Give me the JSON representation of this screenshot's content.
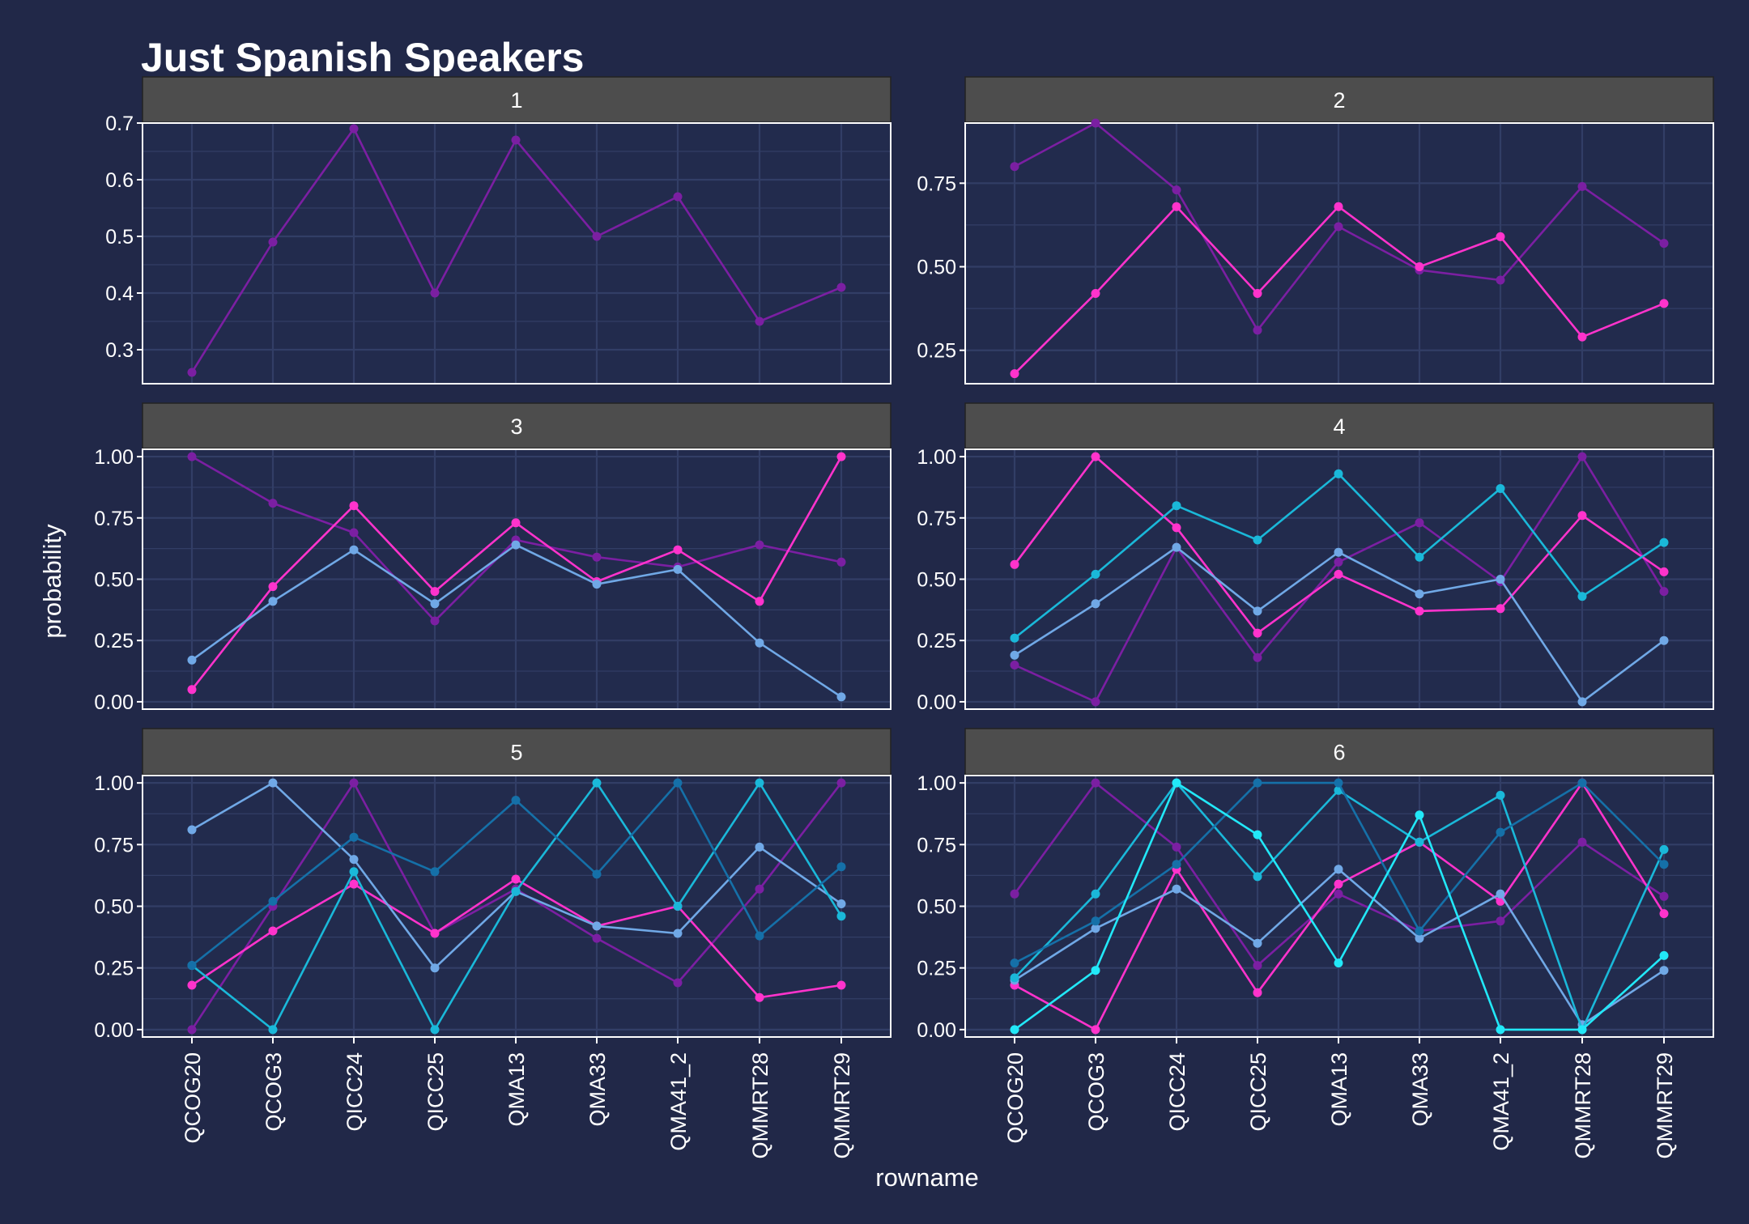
{
  "title": "Just Spanish Speakers",
  "xlabel": "rowname",
  "ylabel": "probability",
  "colors": {
    "background": "#212848",
    "panel_bg": "#222B4D",
    "strip_bg": "#4D4D4D",
    "grid": "#323E66",
    "text": "#FFFFFF",
    "series": [
      "#7B1FA2",
      "#FF33CC",
      "#70A8E6",
      "#1AB8D9",
      "#1570A8",
      "#22E8F8"
    ]
  },
  "chart_data": {
    "type": "line",
    "categories": [
      "QCOG20",
      "QCOG3",
      "QICC24",
      "QICC25",
      "QMA13",
      "QMA33",
      "QMA41_2",
      "QMMRT28",
      "QMMRT29"
    ],
    "xlabel": "rowname",
    "ylabel": "probability",
    "title": "Just Spanish Speakers",
    "grid": true,
    "legend": "none",
    "panels": [
      {
        "label": "1",
        "ylim": [
          0.24,
          0.7
        ],
        "yticks": [
          0.3,
          0.4,
          0.5,
          0.6,
          0.7
        ],
        "ytick_labels": [
          "0.3",
          "0.4",
          "0.5",
          "0.6",
          "0.7"
        ],
        "series": [
          {
            "values": [
              0.26,
              0.49,
              0.69,
              0.4,
              0.67,
              0.5,
              0.57,
              0.35,
              0.41
            ]
          }
        ]
      },
      {
        "label": "2",
        "ylim": [
          0.15,
          0.93
        ],
        "yticks": [
          0.25,
          0.5,
          0.75
        ],
        "ytick_labels": [
          "0.25",
          "0.50",
          "0.75"
        ],
        "series": [
          {
            "values": [
              0.8,
              0.93,
              0.73,
              0.31,
              0.62,
              0.49,
              0.46,
              0.74,
              0.57
            ]
          },
          {
            "values": [
              0.18,
              0.42,
              0.68,
              0.42,
              0.68,
              0.5,
              0.59,
              0.29,
              0.39
            ]
          }
        ]
      },
      {
        "label": "3",
        "ylim": [
          -0.03,
          1.03
        ],
        "yticks": [
          0,
          0.25,
          0.5,
          0.75,
          1
        ],
        "ytick_labels": [
          "0.00",
          "0.25",
          "0.50",
          "0.75",
          "1.00"
        ],
        "series": [
          {
            "values": [
              1.0,
              0.81,
              0.69,
              0.33,
              0.66,
              0.59,
              0.55,
              0.64,
              0.57
            ]
          },
          {
            "values": [
              0.05,
              0.47,
              0.8,
              0.45,
              0.73,
              0.49,
              0.62,
              0.41,
              1.0
            ]
          },
          {
            "values": [
              0.17,
              0.41,
              0.62,
              0.4,
              0.64,
              0.48,
              0.54,
              0.24,
              0.02
            ]
          }
        ]
      },
      {
        "label": "4",
        "ylim": [
          -0.03,
          1.03
        ],
        "yticks": [
          0,
          0.25,
          0.5,
          0.75,
          1
        ],
        "ytick_labels": [
          "0.00",
          "0.25",
          "0.50",
          "0.75",
          "1.00"
        ],
        "series": [
          {
            "values": [
              0.15,
              0.0,
              0.63,
              0.18,
              0.57,
              0.73,
              0.49,
              1.0,
              0.45
            ]
          },
          {
            "values": [
              0.56,
              1.0,
              0.71,
              0.28,
              0.52,
              0.37,
              0.38,
              0.76,
              0.53
            ]
          },
          {
            "values": [
              0.19,
              0.4,
              0.63,
              0.37,
              0.61,
              0.44,
              0.5,
              0.0,
              0.25
            ]
          },
          {
            "values": [
              0.26,
              0.52,
              0.8,
              0.66,
              0.93,
              0.59,
              0.87,
              0.43,
              0.65
            ]
          }
        ]
      },
      {
        "label": "5",
        "ylim": [
          -0.03,
          1.03
        ],
        "yticks": [
          0,
          0.25,
          0.5,
          0.75,
          1
        ],
        "ytick_labels": [
          "0.00",
          "0.25",
          "0.50",
          "0.75",
          "1.00"
        ],
        "series": [
          {
            "values": [
              0.0,
              0.5,
              1.0,
              0.39,
              0.57,
              0.37,
              0.19,
              0.57,
              1.0
            ]
          },
          {
            "values": [
              0.18,
              0.4,
              0.59,
              0.39,
              0.61,
              0.42,
              0.5,
              0.13,
              0.18
            ]
          },
          {
            "values": [
              0.81,
              1.0,
              0.69,
              0.25,
              0.56,
              0.42,
              0.39,
              0.74,
              0.51
            ]
          },
          {
            "values": [
              0.26,
              0.0,
              0.64,
              0.0,
              0.56,
              1.0,
              0.5,
              1.0,
              0.46
            ]
          },
          {
            "values": [
              0.26,
              0.52,
              0.78,
              0.64,
              0.93,
              0.63,
              1.0,
              0.38,
              0.66
            ]
          }
        ]
      },
      {
        "label": "6",
        "ylim": [
          -0.03,
          1.03
        ],
        "yticks": [
          0,
          0.25,
          0.5,
          0.75,
          1
        ],
        "ytick_labels": [
          "0.00",
          "0.25",
          "0.50",
          "0.75",
          "1.00"
        ],
        "series": [
          {
            "values": [
              0.55,
              1.0,
              0.74,
              0.26,
              0.55,
              0.4,
              0.44,
              0.76,
              0.54
            ]
          },
          {
            "values": [
              0.18,
              0.0,
              0.65,
              0.15,
              0.59,
              0.76,
              0.52,
              1.0,
              0.47
            ]
          },
          {
            "values": [
              0.2,
              0.41,
              0.57,
              0.35,
              0.65,
              0.37,
              0.55,
              0.02,
              0.24
            ]
          },
          {
            "values": [
              0.21,
              0.55,
              1.0,
              0.62,
              0.97,
              0.76,
              0.95,
              0.0,
              0.73
            ]
          },
          {
            "values": [
              0.27,
              0.44,
              0.67,
              1.0,
              1.0,
              0.4,
              0.8,
              1.0,
              0.67
            ]
          },
          {
            "values": [
              0.0,
              0.24,
              1.0,
              0.79,
              0.27,
              0.87,
              0.0,
              0.0,
              0.3
            ]
          }
        ]
      }
    ]
  }
}
